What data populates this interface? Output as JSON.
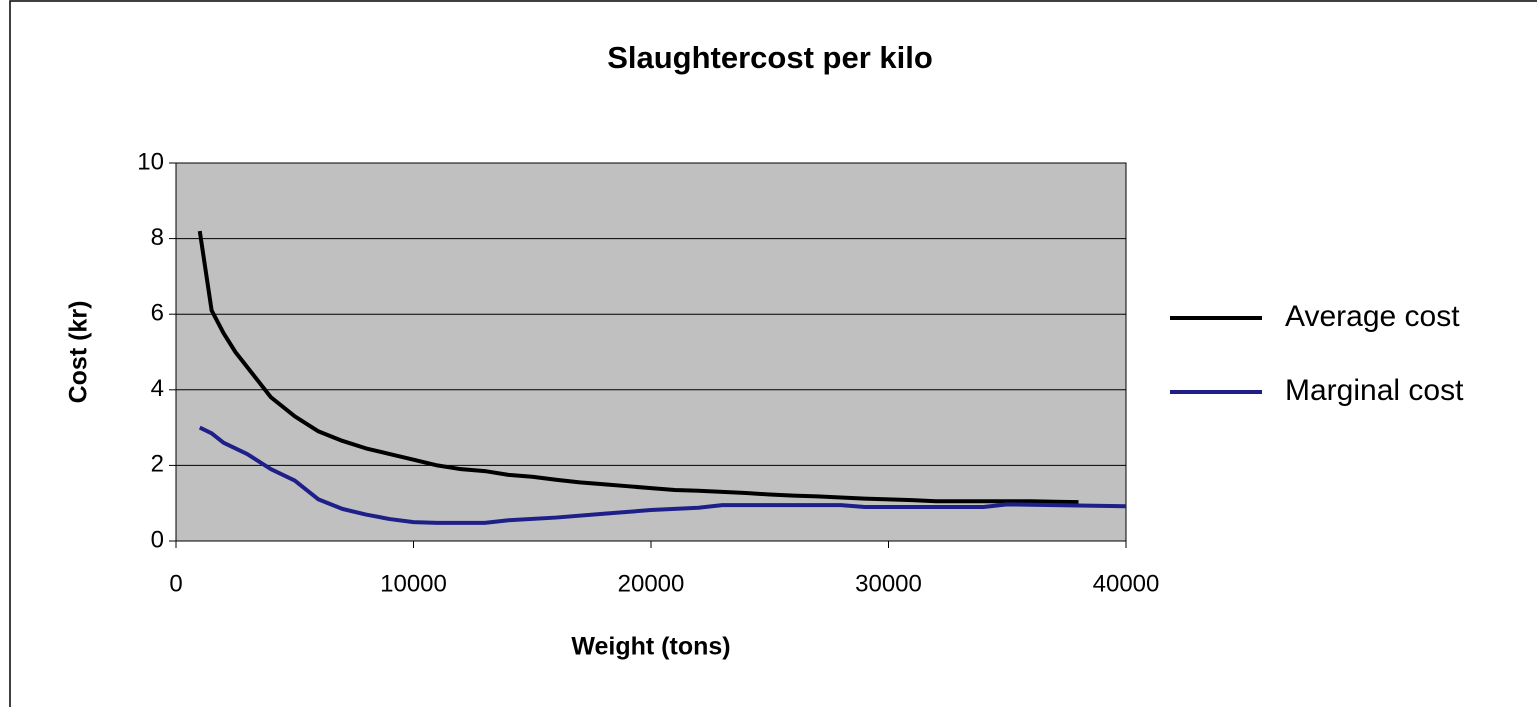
{
  "chart_data": {
    "type": "line",
    "title": "Slaughtercost per kilo",
    "xlabel": "Weight (tons)",
    "ylabel": "Cost (kr)",
    "xlim": [
      0,
      40000
    ],
    "xticks": [
      0,
      10000,
      20000,
      30000,
      40000
    ],
    "ylim": [
      0,
      10
    ],
    "yticks": [
      0,
      2,
      4,
      6,
      8,
      10
    ],
    "grid": true,
    "legend": "right",
    "series": [
      {
        "name": "Average cost",
        "color": "#000000",
        "x": [
          1000,
          1500,
          2000,
          2500,
          3000,
          4000,
          5000,
          6000,
          7000,
          8000,
          9000,
          10000,
          11000,
          12000,
          13000,
          14000,
          15000,
          16000,
          17000,
          18000,
          19000,
          20000,
          21000,
          22000,
          23000,
          24000,
          25000,
          26000,
          27000,
          28000,
          29000,
          30000,
          31000,
          32000,
          33000,
          34000,
          35000,
          36000,
          37000,
          38000
        ],
        "values": [
          8.2,
          6.1,
          5.5,
          5.0,
          4.6,
          3.8,
          3.3,
          2.9,
          2.65,
          2.45,
          2.3,
          2.15,
          2.0,
          1.9,
          1.85,
          1.75,
          1.7,
          1.62,
          1.55,
          1.5,
          1.45,
          1.4,
          1.35,
          1.33,
          1.3,
          1.27,
          1.23,
          1.2,
          1.18,
          1.15,
          1.12,
          1.1,
          1.08,
          1.05,
          1.05,
          1.05,
          1.05,
          1.05,
          1.04,
          1.03
        ]
      },
      {
        "name": "Marginal cost",
        "color": "#1f1f8a",
        "x": [
          1000,
          1500,
          2000,
          3000,
          4000,
          5000,
          6000,
          7000,
          8000,
          9000,
          10000,
          11000,
          12000,
          13000,
          14000,
          16000,
          18000,
          20000,
          22000,
          23000,
          28000,
          29000,
          34000,
          35000,
          37000,
          40000
        ],
        "values": [
          3.0,
          2.85,
          2.6,
          2.3,
          1.9,
          1.6,
          1.1,
          0.85,
          0.7,
          0.58,
          0.5,
          0.48,
          0.48,
          0.48,
          0.55,
          0.62,
          0.72,
          0.82,
          0.88,
          0.95,
          0.95,
          0.9,
          0.9,
          0.97,
          0.95,
          0.92
        ]
      }
    ]
  }
}
